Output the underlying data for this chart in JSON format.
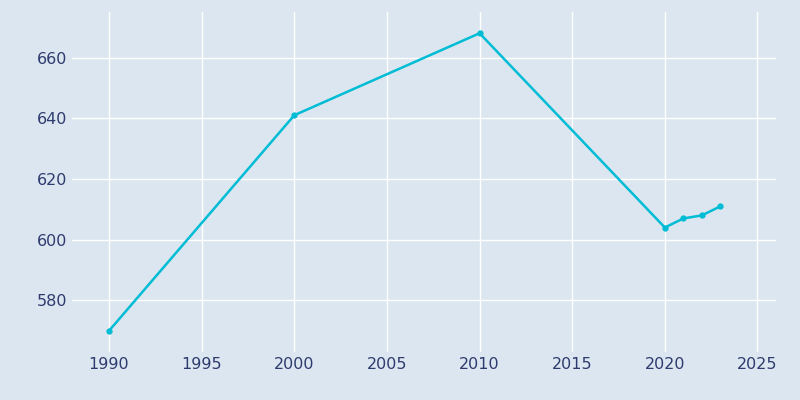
{
  "years": [
    1990,
    2000,
    2010,
    2020,
    2021,
    2022,
    2023
  ],
  "population": [
    570,
    641,
    668,
    604,
    607,
    608,
    611
  ],
  "line_color": "#00BCD4",
  "bg_color": "#dce6f0",
  "grid_color": "#FFFFFF",
  "tick_color": "#2e3b6e",
  "xlim": [
    1988,
    2026
  ],
  "ylim": [
    563,
    675
  ],
  "xticks": [
    1990,
    1995,
    2000,
    2005,
    2010,
    2015,
    2020,
    2025
  ],
  "yticks": [
    580,
    600,
    620,
    640,
    660
  ],
  "linewidth": 1.8,
  "markersize": 3.5,
  "tick_labelsize": 11.5
}
